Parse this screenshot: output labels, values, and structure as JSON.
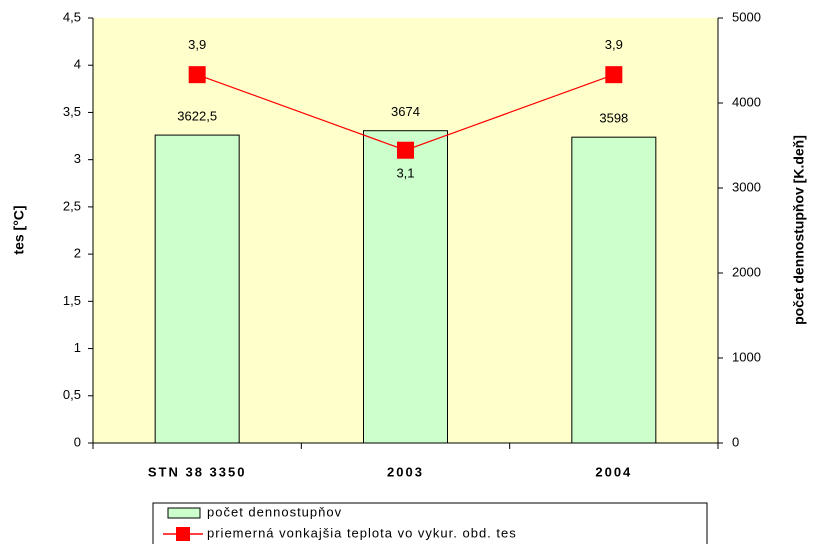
{
  "chart_data": {
    "type": "bar_line",
    "categories": [
      "STN 38 3350",
      "2003",
      "2004"
    ],
    "ylabel": "tes [°C]",
    "y2label": "počet dennostupňov [K.deň]",
    "ylim": [
      0,
      4.5
    ],
    "yticks": [
      0,
      {
        "value": 0.5,
        "label": "0,5"
      },
      1,
      {
        "value": 1.5,
        "label": "1,5"
      },
      2,
      {
        "value": 2.5,
        "label": "2,5"
      },
      3,
      {
        "value": 3.5,
        "label": "3,5"
      },
      4,
      {
        "value": 4.5,
        "label": "4,5"
      }
    ],
    "y2lim": [
      0,
      5000
    ],
    "y2ticks": [
      0,
      1000,
      2000,
      3000,
      4000,
      5000
    ],
    "plot_background": "#ffffcc",
    "legend": "bottom",
    "series": [
      {
        "name": "počet dennostupňov",
        "type": "bar",
        "axis": "y2",
        "color": "#ccffcc",
        "values": [
          3622.5,
          3674,
          3598
        ],
        "value_labels": [
          "3622,5",
          "3674",
          "3598"
        ]
      },
      {
        "name": "priemerná vonkajšia teplota vo vykur. obd. tes",
        "type": "line",
        "axis": "y",
        "color": "#ff0000",
        "values": [
          3.9,
          3.1,
          3.9
        ],
        "value_labels": [
          "3,9",
          "3,1",
          "3,9"
        ]
      }
    ]
  }
}
